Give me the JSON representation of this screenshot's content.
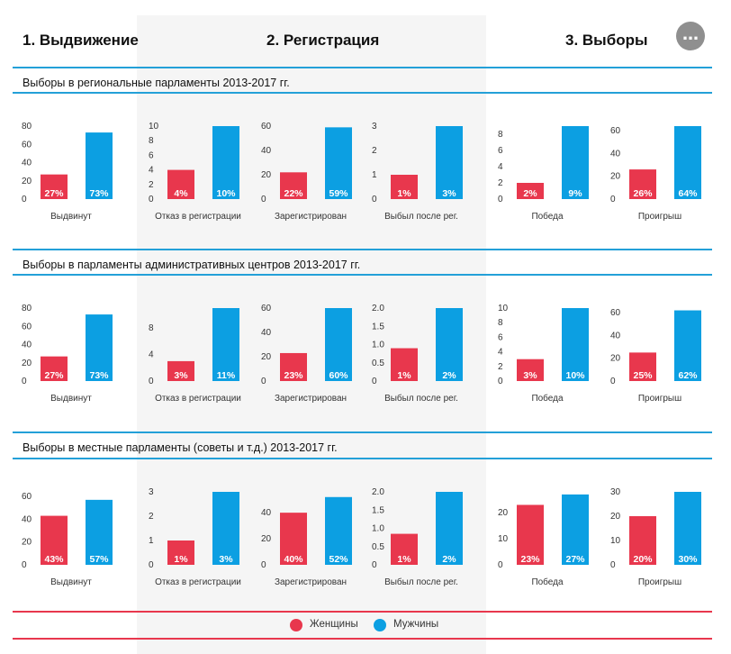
{
  "header": {
    "step1": "1. Выдвижение",
    "step2": "2. Регистрация",
    "step3": "3. Выборы",
    "menu_icon": "…"
  },
  "colors": {
    "women": "#e8374d",
    "men": "#0c9fe2",
    "accent_line": "#23a0d8",
    "legend_line": "#e8374d"
  },
  "legend": {
    "women": "Женщины",
    "men": "Мужчины"
  },
  "sections": [
    {
      "title": "Выборы в региональные парламенты 2013-2017 гг."
    },
    {
      "title": "Выборы в парламенты административных центров 2013-2017 гг."
    },
    {
      "title": "Выборы в местные парламенты (советы и т.д.) 2013-2017 гг."
    }
  ],
  "chart_data": [
    {
      "type": "bar",
      "section": 0,
      "xlabel": "Выдвинут",
      "categories": [
        "Женщины",
        "Мужчины"
      ],
      "values": [
        27,
        73
      ],
      "labels": [
        "27%",
        "73%"
      ],
      "ylim": [
        0,
        80
      ],
      "yticks": [
        "0",
        "20",
        "40",
        "60",
        "80"
      ]
    },
    {
      "type": "bar",
      "section": 0,
      "xlabel": "Отказ в регистрации",
      "categories": [
        "Женщины",
        "Мужчины"
      ],
      "values": [
        4,
        10
      ],
      "labels": [
        "4%",
        "10%"
      ],
      "ylim": [
        0,
        10
      ],
      "yticks": [
        "0",
        "2",
        "4",
        "6",
        "8",
        "10"
      ]
    },
    {
      "type": "bar",
      "section": 0,
      "xlabel": "Зарегистрирован",
      "categories": [
        "Женщины",
        "Мужчины"
      ],
      "values": [
        22,
        59
      ],
      "labels": [
        "22%",
        "59%"
      ],
      "ylim": [
        0,
        60
      ],
      "yticks": [
        "0",
        "20",
        "40",
        "60"
      ]
    },
    {
      "type": "bar",
      "section": 0,
      "xlabel": "Выбыл после рег.",
      "categories": [
        "Женщины",
        "Мужчины"
      ],
      "values": [
        1,
        3
      ],
      "labels": [
        "1%",
        "3%"
      ],
      "ylim": [
        0,
        3
      ],
      "yticks": [
        "0",
        "1",
        "2",
        "3"
      ]
    },
    {
      "type": "bar",
      "section": 0,
      "xlabel": "Победа",
      "categories": [
        "Женщины",
        "Мужчины"
      ],
      "values": [
        2,
        9
      ],
      "labels": [
        "2%",
        "9%"
      ],
      "ylim": [
        0,
        9
      ],
      "yticks": [
        "0",
        "2",
        "4",
        "6",
        "8"
      ]
    },
    {
      "type": "bar",
      "section": 0,
      "xlabel": "Проигрыш",
      "categories": [
        "Женщины",
        "Мужчины"
      ],
      "values": [
        26,
        64
      ],
      "labels": [
        "26%",
        "64%"
      ],
      "ylim": [
        0,
        64
      ],
      "yticks": [
        "0",
        "20",
        "40",
        "60"
      ]
    },
    {
      "type": "bar",
      "section": 1,
      "xlabel": "Выдвинут",
      "categories": [
        "Женщины",
        "Мужчины"
      ],
      "values": [
        27,
        73
      ],
      "labels": [
        "27%",
        "73%"
      ],
      "ylim": [
        0,
        80
      ],
      "yticks": [
        "0",
        "20",
        "40",
        "60",
        "80"
      ]
    },
    {
      "type": "bar",
      "section": 1,
      "xlabel": "Отказ в регистрации",
      "categories": [
        "Женщины",
        "Мужчины"
      ],
      "values": [
        3,
        11
      ],
      "labels": [
        "3%",
        "11%"
      ],
      "ylim": [
        0,
        11
      ],
      "yticks": [
        "0",
        "4",
        "8"
      ]
    },
    {
      "type": "bar",
      "section": 1,
      "xlabel": "Зарегистрирован",
      "categories": [
        "Женщины",
        "Мужчины"
      ],
      "values": [
        23,
        60
      ],
      "labels": [
        "23%",
        "60%"
      ],
      "ylim": [
        0,
        60
      ],
      "yticks": [
        "0",
        "20",
        "40",
        "60"
      ]
    },
    {
      "type": "bar",
      "section": 1,
      "xlabel": "Выбыл после рег.",
      "categories": [
        "Женщины",
        "Мужчины"
      ],
      "values": [
        0.9,
        2
      ],
      "labels": [
        "1%",
        "2%"
      ],
      "ylim": [
        0,
        2
      ],
      "yticks": [
        "0",
        "0.5",
        "1.0",
        "1.5",
        "2.0"
      ]
    },
    {
      "type": "bar",
      "section": 1,
      "xlabel": "Победа",
      "categories": [
        "Женщины",
        "Мужчины"
      ],
      "values": [
        3,
        10
      ],
      "labels": [
        "3%",
        "10%"
      ],
      "ylim": [
        0,
        10
      ],
      "yticks": [
        "0",
        "2",
        "4",
        "6",
        "8",
        "10"
      ]
    },
    {
      "type": "bar",
      "section": 1,
      "xlabel": "Проигрыш",
      "categories": [
        "Женщины",
        "Мужчины"
      ],
      "values": [
        25,
        62
      ],
      "labels": [
        "25%",
        "62%"
      ],
      "ylim": [
        0,
        64
      ],
      "yticks": [
        "0",
        "20",
        "40",
        "60"
      ]
    },
    {
      "type": "bar",
      "section": 2,
      "xlabel": "Выдвинут",
      "categories": [
        "Женщины",
        "Мужчины"
      ],
      "values": [
        43,
        57
      ],
      "labels": [
        "43%",
        "57%"
      ],
      "ylim": [
        0,
        64
      ],
      "yticks": [
        "0",
        "20",
        "40",
        "60"
      ]
    },
    {
      "type": "bar",
      "section": 2,
      "xlabel": "Отказ в регистрации",
      "categories": [
        "Женщины",
        "Мужчины"
      ],
      "values": [
        1,
        3
      ],
      "labels": [
        "1%",
        "3%"
      ],
      "ylim": [
        0,
        3
      ],
      "yticks": [
        "0",
        "1",
        "2",
        "3"
      ]
    },
    {
      "type": "bar",
      "section": 2,
      "xlabel": "Зарегистрирован",
      "categories": [
        "Женщины",
        "Мужчины"
      ],
      "values": [
        40,
        52
      ],
      "labels": [
        "40%",
        "52%"
      ],
      "ylim": [
        0,
        56
      ],
      "yticks": [
        "0",
        "20",
        "40"
      ]
    },
    {
      "type": "bar",
      "section": 2,
      "xlabel": "Выбыл после рег.",
      "categories": [
        "Женщины",
        "Мужчины"
      ],
      "values": [
        0.85,
        2
      ],
      "labels": [
        "1%",
        "2%"
      ],
      "ylim": [
        0,
        2
      ],
      "yticks": [
        "0",
        "0.5",
        "1.0",
        "1.5",
        "2.0"
      ]
    },
    {
      "type": "bar",
      "section": 2,
      "xlabel": "Победа",
      "categories": [
        "Женщины",
        "Мужчины"
      ],
      "values": [
        23,
        27
      ],
      "labels": [
        "23%",
        "27%"
      ],
      "ylim": [
        0,
        28
      ],
      "yticks": [
        "0",
        "10",
        "20"
      ]
    },
    {
      "type": "bar",
      "section": 2,
      "xlabel": "Проигрыш",
      "categories": [
        "Женщины",
        "Мужчины"
      ],
      "values": [
        20,
        30
      ],
      "labels": [
        "20%",
        "30%"
      ],
      "ylim": [
        0,
        30
      ],
      "yticks": [
        "0",
        "10",
        "20",
        "30"
      ]
    }
  ]
}
